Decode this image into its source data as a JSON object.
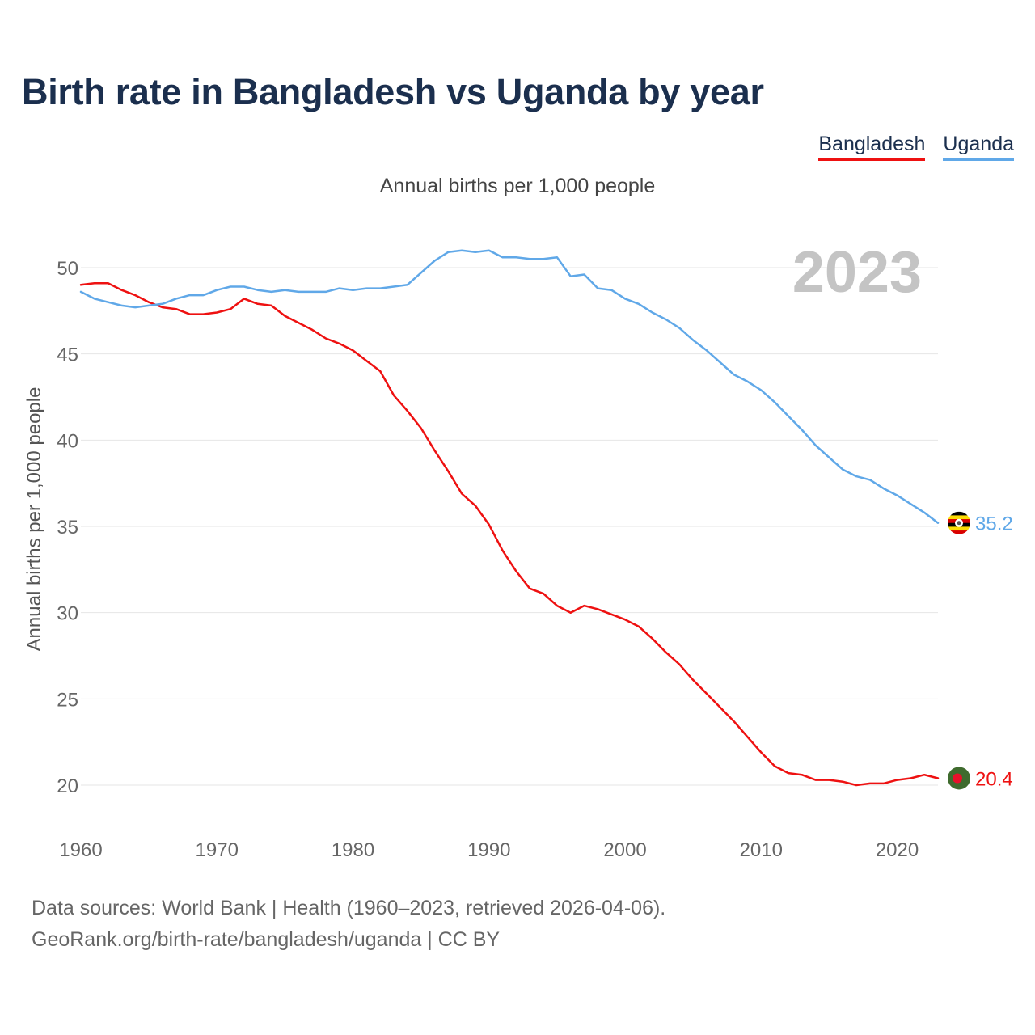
{
  "title": "Birth rate in Bangladesh vs Uganda by year",
  "legend": {
    "bangladesh": "Bangladesh",
    "uganda": "Uganda"
  },
  "footer": {
    "line1": "Data sources: World Bank | Health (1960–2023, retrieved 2026-04-06).",
    "line2": "GeoRank.org/birth-rate/bangladesh/uganda | CC BY"
  },
  "colors": {
    "bangladesh": "#ee1111",
    "uganda": "#60a8e8",
    "year_watermark": "#c4c4c4",
    "title": "#1b2f4e"
  },
  "chart_data": {
    "type": "line",
    "title": "Birth rate in Bangladesh vs Uganda by year",
    "subtitle": "Annual births per 1,000 people",
    "ylabel": "Annual births per 1,000 people",
    "xlabel": "",
    "year_label": "2023",
    "xlim": [
      1960,
      2023
    ],
    "ylim": [
      18,
      53
    ],
    "x_ticks": [
      1960,
      1970,
      1980,
      1990,
      2000,
      2010,
      2020
    ],
    "y_ticks": [
      20,
      25,
      30,
      35,
      40,
      45,
      50
    ],
    "x": [
      1960,
      1961,
      1962,
      1963,
      1964,
      1965,
      1966,
      1967,
      1968,
      1969,
      1970,
      1971,
      1972,
      1973,
      1974,
      1975,
      1976,
      1977,
      1978,
      1979,
      1980,
      1981,
      1982,
      1983,
      1984,
      1985,
      1986,
      1987,
      1988,
      1989,
      1990,
      1991,
      1992,
      1993,
      1994,
      1995,
      1996,
      1997,
      1998,
      1999,
      2000,
      2001,
      2002,
      2003,
      2004,
      2005,
      2006,
      2007,
      2008,
      2009,
      2010,
      2011,
      2012,
      2013,
      2014,
      2015,
      2016,
      2017,
      2018,
      2019,
      2020,
      2021,
      2022,
      2023
    ],
    "series": [
      {
        "name": "Bangladesh",
        "color": "#ee1111",
        "end_label": "20.4",
        "flag": "bangladesh-flag",
        "values": [
          49.0,
          49.1,
          49.1,
          48.7,
          48.4,
          48.0,
          47.7,
          47.6,
          47.3,
          47.3,
          47.4,
          47.6,
          48.2,
          47.9,
          47.8,
          47.2,
          46.8,
          46.4,
          45.9,
          45.6,
          45.2,
          44.6,
          44.0,
          42.6,
          41.7,
          40.7,
          39.4,
          38.2,
          36.9,
          36.2,
          35.1,
          33.6,
          32.4,
          31.4,
          31.1,
          30.4,
          30.0,
          30.4,
          30.2,
          29.9,
          29.6,
          29.2,
          28.5,
          27.7,
          27.0,
          26.1,
          25.3,
          24.5,
          23.7,
          22.8,
          21.9,
          21.1,
          20.7,
          20.6,
          20.3,
          20.3,
          20.2,
          20.0,
          20.1,
          20.1,
          20.3,
          20.4,
          20.6,
          20.4
        ]
      },
      {
        "name": "Uganda",
        "color": "#60a8e8",
        "end_label": "35.2",
        "flag": "uganda-flag",
        "values": [
          48.6,
          48.2,
          48.0,
          47.8,
          47.7,
          47.8,
          47.9,
          48.2,
          48.4,
          48.4,
          48.7,
          48.9,
          48.9,
          48.7,
          48.6,
          48.7,
          48.6,
          48.6,
          48.6,
          48.8,
          48.7,
          48.8,
          48.8,
          48.9,
          49.0,
          49.7,
          50.4,
          50.9,
          51.0,
          50.9,
          51.0,
          50.6,
          50.6,
          50.5,
          50.5,
          50.6,
          49.5,
          49.6,
          48.8,
          48.7,
          48.2,
          47.9,
          47.4,
          47.0,
          46.5,
          45.8,
          45.2,
          44.5,
          43.8,
          43.4,
          42.9,
          42.2,
          41.4,
          40.6,
          39.7,
          39.0,
          38.3,
          37.9,
          37.7,
          37.2,
          36.8,
          36.3,
          35.8,
          35.2
        ]
      }
    ]
  }
}
